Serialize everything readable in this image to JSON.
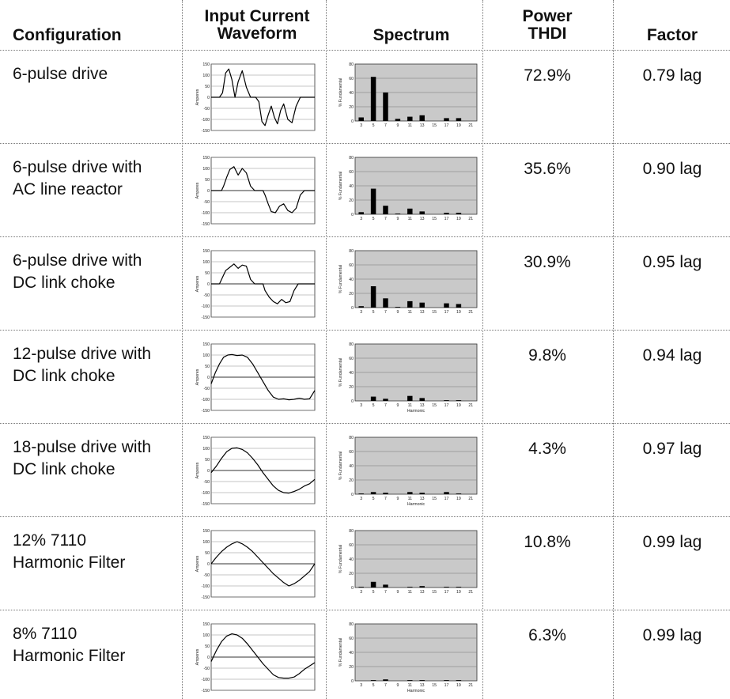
{
  "headers": {
    "configuration": "Configuration",
    "waveform_line1": "Input Current",
    "waveform_line2": "Waveform",
    "spectrum": "Spectrum",
    "thdi_line1": "Power",
    "thdi_line2": "THDI",
    "factor": "Factor"
  },
  "axis_labels": {
    "waveform_ylabel": "Amperes",
    "spectrum_ylabel": "% Fundamental",
    "spectrum_xlabel": "Harmonic"
  },
  "rows": [
    {
      "config_line1": "6-pulse drive",
      "config_line2": "",
      "thdi": "72.9%",
      "pf": "0.79 lag"
    },
    {
      "config_line1": "6-pulse drive with",
      "config_line2": "AC line reactor",
      "thdi": "35.6%",
      "pf": "0.90 lag"
    },
    {
      "config_line1": "6-pulse drive with",
      "config_line2": "DC link choke",
      "thdi": "30.9%",
      "pf": "0.95 lag"
    },
    {
      "config_line1": "12-pulse drive with",
      "config_line2": "DC link choke",
      "thdi": "9.8%",
      "pf": "0.94 lag"
    },
    {
      "config_line1": "18-pulse drive with",
      "config_line2": "DC link choke",
      "thdi": "4.3%",
      "pf": "0.97 lag"
    },
    {
      "config_line1": "12% 7110",
      "config_line2": "Harmonic Filter",
      "thdi": "10.8%",
      "pf": "0.99 lag"
    },
    {
      "config_line1": "8% 7110",
      "config_line2": "Harmonic Filter",
      "thdi": "6.3%",
      "pf": "0.99 lag"
    }
  ],
  "chart_data": [
    {
      "type": "line",
      "chart": "waveform",
      "row": 0,
      "x": [
        0,
        4,
        8,
        11,
        14,
        17,
        20,
        23,
        26,
        30,
        34,
        38,
        40,
        43,
        46,
        49,
        52,
        55,
        58,
        61,
        64,
        67,
        70,
        74,
        78,
        82,
        86,
        90,
        94,
        98,
        100
      ],
      "y": [
        0,
        0,
        0,
        20,
        110,
        128,
        80,
        0,
        70,
        120,
        45,
        0,
        0,
        0,
        -20,
        -110,
        -128,
        -80,
        -40,
        -90,
        -120,
        -60,
        -30,
        -100,
        -115,
        -40,
        0,
        0,
        0,
        0,
        0
      ],
      "ylim": [
        -150,
        150
      ],
      "yticks": [
        150,
        100,
        50,
        0,
        -50,
        -100,
        -150
      ],
      "ylabel": "Amperes"
    },
    {
      "type": "bar",
      "chart": "spectrum",
      "row": 0,
      "categories": [
        3,
        5,
        7,
        9,
        11,
        13,
        15,
        17,
        19,
        21
      ],
      "values": [
        5,
        62,
        40,
        3,
        6,
        8,
        0,
        4,
        4,
        0
      ],
      "ylim": [
        0,
        80
      ],
      "yticks": [
        80,
        60,
        40,
        20,
        0
      ],
      "ylabel": "% Fundamental"
    },
    {
      "type": "line",
      "chart": "waveform",
      "row": 1,
      "x": [
        0,
        4,
        8,
        10,
        12,
        15,
        18,
        22,
        26,
        30,
        34,
        38,
        42,
        46,
        50,
        52,
        55,
        58,
        62,
        66,
        70,
        74,
        78,
        82,
        86,
        90,
        94,
        98,
        100
      ],
      "y": [
        0,
        0,
        0,
        0,
        20,
        60,
        95,
        108,
        70,
        100,
        80,
        20,
        0,
        0,
        0,
        -20,
        -60,
        -95,
        -100,
        -70,
        -60,
        -90,
        -100,
        -80,
        -20,
        0,
        0,
        0,
        0
      ],
      "ylim": [
        -150,
        150
      ],
      "yticks": [
        150,
        100,
        50,
        0,
        -50,
        -100,
        -150
      ],
      "ylabel": "Amperes"
    },
    {
      "type": "bar",
      "chart": "spectrum",
      "row": 1,
      "categories": [
        3,
        5,
        7,
        9,
        11,
        13,
        15,
        17,
        19,
        21
      ],
      "values": [
        3,
        36,
        12,
        1,
        8,
        4,
        0,
        2,
        2,
        0
      ],
      "ylim": [
        0,
        80
      ],
      "yticks": [
        80,
        60,
        40,
        20,
        0
      ],
      "ylabel": "% Fundamental"
    },
    {
      "type": "line",
      "chart": "waveform",
      "row": 2,
      "x": [
        0,
        4,
        8,
        11,
        14,
        18,
        22,
        26,
        30,
        34,
        38,
        42,
        46,
        50,
        52,
        56,
        60,
        64,
        68,
        72,
        76,
        80,
        84,
        88,
        92,
        96,
        100
      ],
      "y": [
        0,
        0,
        0,
        30,
        60,
        75,
        90,
        70,
        85,
        80,
        20,
        0,
        0,
        0,
        -30,
        -60,
        -80,
        -90,
        -70,
        -85,
        -80,
        -30,
        0,
        0,
        0,
        0,
        0
      ],
      "ylim": [
        -150,
        150
      ],
      "yticks": [
        150,
        100,
        50,
        0,
        -50,
        -100,
        -150
      ],
      "ylabel": "Amperes"
    },
    {
      "type": "bar",
      "chart": "spectrum",
      "row": 2,
      "categories": [
        3,
        5,
        7,
        9,
        11,
        13,
        15,
        17,
        19,
        21
      ],
      "values": [
        2,
        30,
        13,
        1,
        9,
        7,
        0,
        6,
        5,
        0
      ],
      "ylim": [
        0,
        80
      ],
      "yticks": [
        80,
        60,
        40,
        20,
        0
      ],
      "ylabel": "% Fundamental"
    },
    {
      "type": "line",
      "chart": "waveform",
      "row": 3,
      "x": [
        0,
        4,
        8,
        12,
        16,
        20,
        25,
        30,
        35,
        40,
        45,
        50,
        55,
        60,
        65,
        70,
        75,
        80,
        85,
        90,
        95,
        100
      ],
      "y": [
        -30,
        20,
        60,
        90,
        100,
        102,
        98,
        100,
        90,
        60,
        20,
        -20,
        -60,
        -90,
        -100,
        -98,
        -102,
        -100,
        -95,
        -100,
        -98,
        -60
      ],
      "ylim": [
        -150,
        150
      ],
      "yticks": [
        150,
        100,
        50,
        0,
        -50,
        -100,
        -150
      ],
      "ylabel": "Amperes"
    },
    {
      "type": "bar",
      "chart": "spectrum",
      "row": 3,
      "categories": [
        3,
        5,
        7,
        9,
        11,
        13,
        15,
        17,
        19,
        21
      ],
      "values": [
        0,
        6,
        3,
        0,
        7,
        4,
        0,
        1,
        1,
        0
      ],
      "ylim": [
        0,
        80
      ],
      "yticks": [
        80,
        60,
        40,
        20,
        0
      ],
      "ylabel": "% Fundamental",
      "xlabel": "Harmonic"
    },
    {
      "type": "line",
      "chart": "waveform",
      "row": 4,
      "x": [
        0,
        5,
        10,
        15,
        20,
        25,
        30,
        35,
        40,
        45,
        50,
        55,
        60,
        65,
        70,
        75,
        80,
        85,
        90,
        95,
        100
      ],
      "y": [
        -10,
        20,
        55,
        85,
        100,
        102,
        95,
        80,
        55,
        25,
        -10,
        -40,
        -70,
        -90,
        -100,
        -102,
        -95,
        -85,
        -70,
        -60,
        -40
      ],
      "ylim": [
        -150,
        150
      ],
      "yticks": [
        150,
        100,
        50,
        0,
        -50,
        -100,
        -150
      ],
      "ylabel": "Amperes"
    },
    {
      "type": "bar",
      "chart": "spectrum",
      "row": 4,
      "categories": [
        3,
        5,
        7,
        9,
        11,
        13,
        15,
        17,
        19,
        21
      ],
      "values": [
        1,
        3,
        2,
        0,
        3,
        2,
        0,
        3,
        1,
        0
      ],
      "ylim": [
        0,
        80
      ],
      "yticks": [
        80,
        60,
        40,
        20,
        0
      ],
      "ylabel": "% Fundamental",
      "xlabel": "Harmonic"
    },
    {
      "type": "line",
      "chart": "waveform",
      "row": 5,
      "x": [
        0,
        5,
        10,
        15,
        20,
        25,
        30,
        35,
        40,
        45,
        50,
        55,
        60,
        65,
        70,
        75,
        80,
        85,
        90,
        95,
        100
      ],
      "y": [
        0,
        30,
        55,
        75,
        90,
        100,
        90,
        75,
        55,
        30,
        5,
        -20,
        -45,
        -65,
        -85,
        -100,
        -90,
        -75,
        -55,
        -35,
        0
      ],
      "ylim": [
        -150,
        150
      ],
      "yticks": [
        150,
        100,
        50,
        0,
        -50,
        -100,
        -150
      ],
      "ylabel": "Amperes"
    },
    {
      "type": "bar",
      "chart": "spectrum",
      "row": 5,
      "categories": [
        3,
        5,
        7,
        9,
        11,
        13,
        15,
        17,
        19,
        21
      ],
      "values": [
        1,
        8,
        4,
        0,
        1,
        2,
        0,
        1,
        1,
        0
      ],
      "ylim": [
        0,
        80
      ],
      "yticks": [
        80,
        60,
        40,
        20,
        0
      ],
      "ylabel": "% Fundamental"
    },
    {
      "type": "line",
      "chart": "waveform",
      "row": 6,
      "x": [
        0,
        5,
        10,
        15,
        20,
        25,
        30,
        35,
        40,
        45,
        50,
        55,
        60,
        65,
        70,
        75,
        80,
        85,
        90,
        95,
        100
      ],
      "y": [
        -20,
        30,
        70,
        95,
        105,
        100,
        85,
        60,
        30,
        0,
        -30,
        -55,
        -80,
        -92,
        -95,
        -95,
        -90,
        -75,
        -55,
        -40,
        -25
      ],
      "ylim": [
        -150,
        150
      ],
      "yticks": [
        150,
        100,
        50,
        0,
        -50,
        -100,
        -150
      ],
      "ylabel": "Amperes"
    },
    {
      "type": "bar",
      "chart": "spectrum",
      "row": 6,
      "categories": [
        3,
        5,
        7,
        9,
        11,
        13,
        15,
        17,
        19,
        21
      ],
      "values": [
        0,
        1,
        2,
        0,
        1,
        1,
        0,
        1,
        1,
        0
      ],
      "ylim": [
        0,
        80
      ],
      "yticks": [
        80,
        60,
        40,
        20,
        0
      ],
      "ylabel": "% Fundamental",
      "xlabel": "Harmonic"
    }
  ]
}
